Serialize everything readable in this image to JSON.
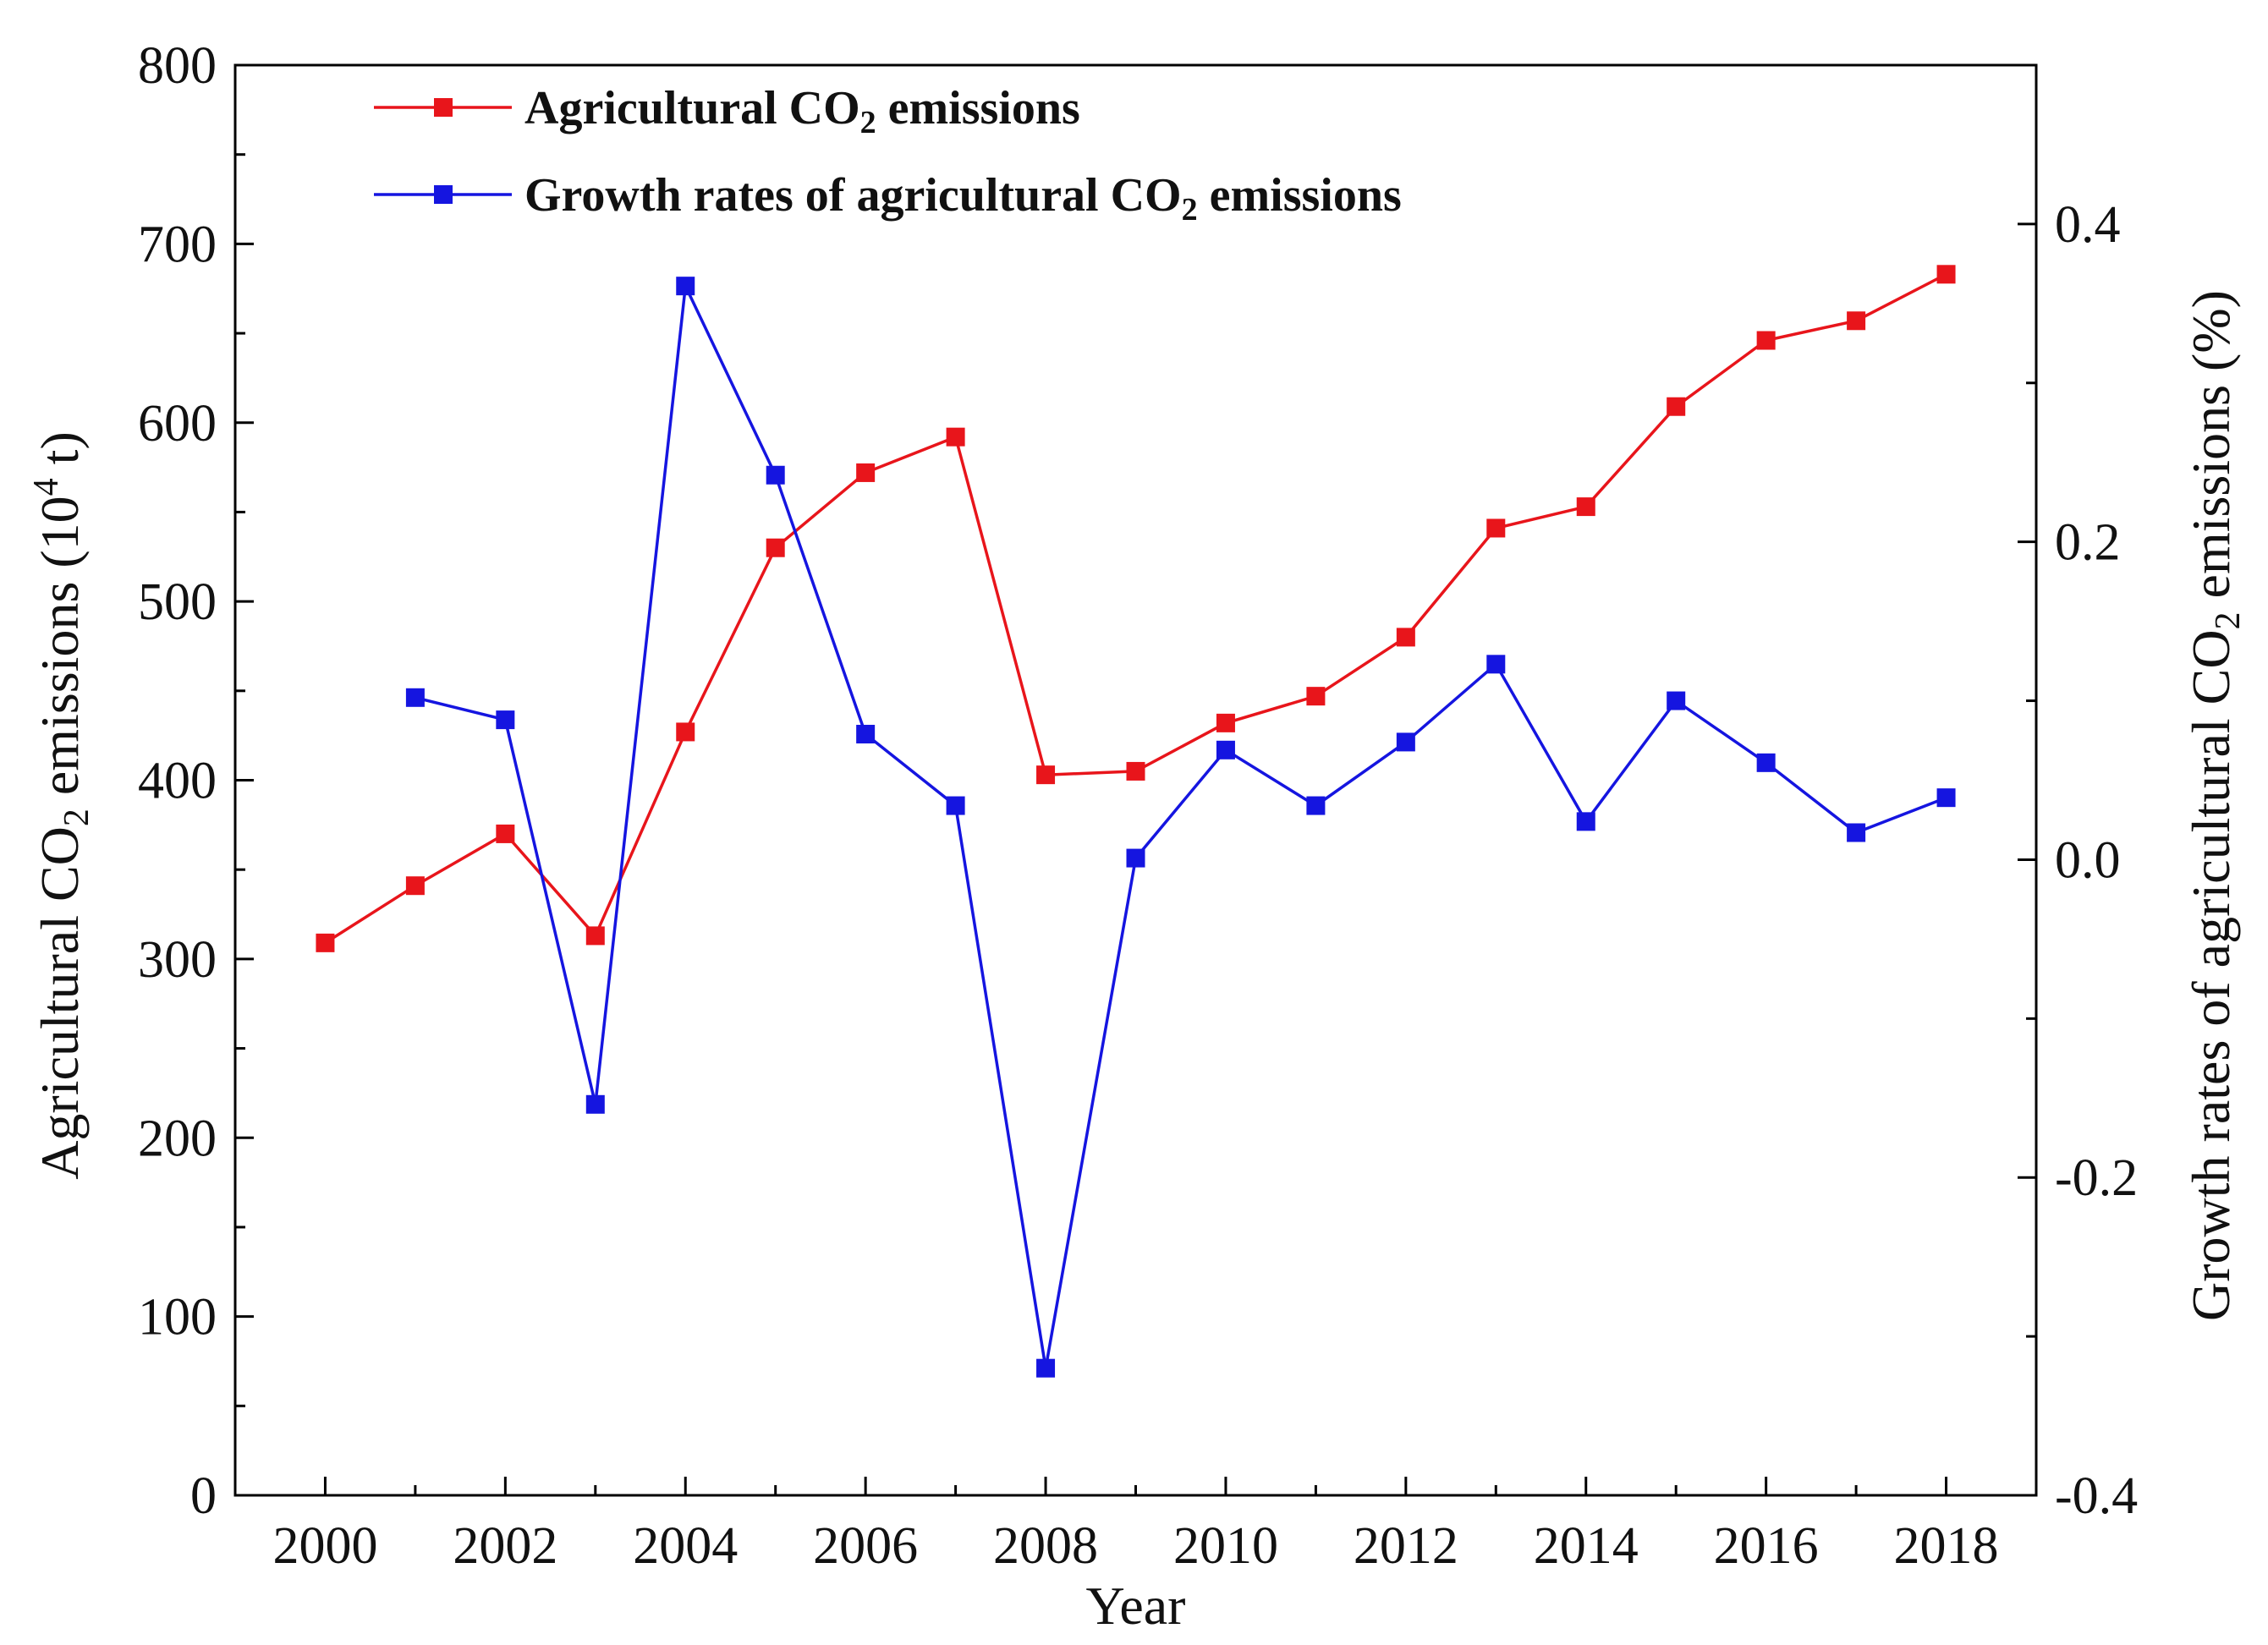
{
  "chart_data": {
    "type": "line",
    "x": [
      2000,
      2001,
      2002,
      2003,
      2004,
      2005,
      2006,
      2007,
      2008,
      2009,
      2010,
      2011,
      2012,
      2013,
      2014,
      2015,
      2016,
      2017,
      2018
    ],
    "xlabel": "Year",
    "xlim": [
      1999,
      2019
    ],
    "xticks": [
      "2000",
      "2002",
      "2004",
      "2006",
      "2008",
      "2010",
      "2012",
      "2014",
      "2016",
      "2018"
    ],
    "y_left": {
      "label_main": "Agricultural CO",
      "label_sub": "2",
      "label_mid": " emissions (10",
      "label_sup": "4",
      "label_end": " t)",
      "ylim": [
        0,
        800
      ],
      "ticks": [
        "0",
        "100",
        "200",
        "300",
        "400",
        "500",
        "600",
        "700",
        "800"
      ]
    },
    "y_right": {
      "label_main": "Growth rates of agricultural CO",
      "label_sub": "2",
      "label_end": " emissions (%)",
      "ylim": [
        -0.4,
        0.5
      ],
      "ticks": [
        "-0.4",
        "-0.2",
        "0.0",
        "0.2",
        "0.4"
      ]
    },
    "series": [
      {
        "name": "Agricultural CO2 emissions",
        "legend_main": "Agricultural CO",
        "legend_sub": "2",
        "legend_end": " emissions",
        "color": "#e8151b",
        "axis": "left",
        "values": [
          309,
          341,
          370,
          313,
          427,
          530,
          572,
          592,
          403,
          405,
          432,
          447,
          480,
          541,
          553,
          609,
          646,
          657,
          683
        ]
      },
      {
        "name": "Growth rates of agricultural CO2 emissions",
        "legend_main": "Growth rates of agricultural CO",
        "legend_sub": "2",
        "legend_end": " emissions",
        "color": "#1515e0",
        "axis": "right",
        "x": [
          2001,
          2002,
          2003,
          2004,
          2005,
          2006,
          2007,
          2008,
          2009,
          2010,
          2011,
          2012,
          2013,
          2014,
          2015,
          2016,
          2017,
          2018
        ],
        "values": [
          0.102,
          0.088,
          -0.154,
          0.361,
          0.242,
          0.079,
          0.034,
          -0.32,
          0.001,
          0.069,
          0.034,
          0.074,
          0.123,
          0.024,
          0.1,
          0.061,
          0.017,
          0.039
        ]
      }
    ]
  }
}
